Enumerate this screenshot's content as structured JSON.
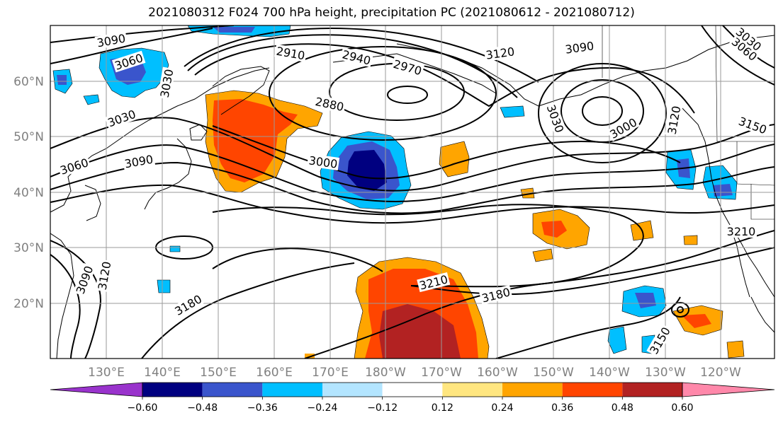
{
  "title": "2021080312 F024 700 hPa height, precipitation PC (2021080612 - 2021080712)",
  "lat_ticks": [
    "60°N",
    "50°N",
    "40°N",
    "30°N",
    "20°N"
  ],
  "lon_ticks": [
    "130°E",
    "140°E",
    "150°E",
    "160°E",
    "170°E",
    "180°W",
    "170°W",
    "160°W",
    "150°W",
    "140°W",
    "130°W",
    "120°W"
  ],
  "contour_labels": [
    "3090",
    "3060",
    "3030",
    "3030",
    "3060",
    "3090",
    "2910",
    "2940",
    "2970",
    "2880",
    "3000",
    "3120",
    "3090",
    "3030",
    "3000",
    "3120",
    "3150",
    "3060",
    "3030",
    "3210",
    "3090",
    "3120",
    "3180",
    "3210",
    "3180",
    "3150"
  ],
  "colorbar": {
    "colors": [
      "#9933cc",
      "#000080",
      "#3a55cc",
      "#00bfff",
      "#b3e5ff",
      "#ffffff",
      "#ffe680",
      "#ffa500",
      "#ff4500",
      "#b22222",
      "#ff88aa"
    ],
    "labels": [
      "−0.60",
      "−0.48",
      "−0.36",
      "−0.24",
      "−0.12",
      "0.12",
      "0.24",
      "0.36",
      "0.48",
      "0.60"
    ]
  }
}
